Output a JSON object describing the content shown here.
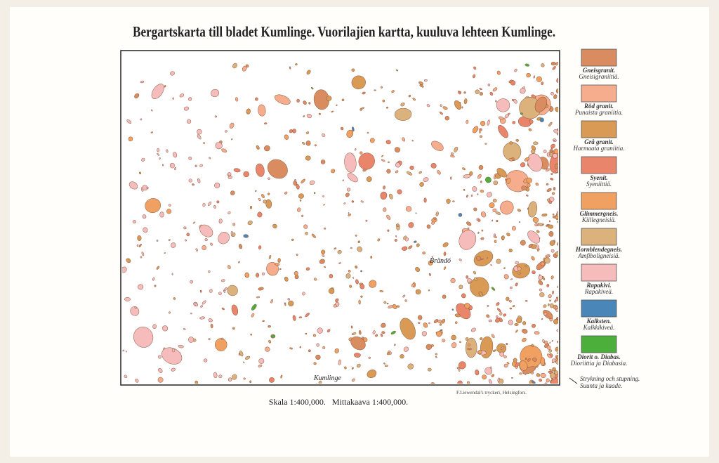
{
  "header": {
    "title": "Bergartskarta till bladet Kumlinge. Vuorilajien kartta, kuuluva lehteen Kumlinge."
  },
  "map": {
    "places": [
      "Brändö",
      "Kumlinge"
    ],
    "printer": "F.Liewendal's tryckeri, Helsingfors.",
    "scale": "Skala 1:400,000.   Mittakaava 1:400,000."
  },
  "legend": [
    {
      "sv": "Gneisgranit.",
      "fi": "Gneisigraniitiä.",
      "color": "#d98c5f"
    },
    {
      "sv": "Röd granit.",
      "fi": "Punaista graniitia.",
      "color": "#f5ad8e"
    },
    {
      "sv": "Grå granit.",
      "fi": "Harmaata graniitia.",
      "color": "#d99a55"
    },
    {
      "sv": "Syenit.",
      "fi": "Syeniittiä.",
      "color": "#e8856a"
    },
    {
      "sv": "Glimmergneis.",
      "fi": "Kiillegneisiä.",
      "color": "#f0a060"
    },
    {
      "sv": "Hornblendegneis.",
      "fi": "Amfiboligneisiä.",
      "color": "#dcb27c"
    },
    {
      "sv": "Rapakivi.",
      "fi": "Rapakiveä.",
      "color": "#f6bcbc"
    },
    {
      "sv": "Kalksten.",
      "fi": "Kalkkikiveä.",
      "color": "#4a86b8"
    },
    {
      "sv": "Diorit o. Diabas.",
      "fi": "Dioriittia ja Diabasia.",
      "color": "#4caf3c"
    }
  ],
  "symbol": {
    "sv": "Strykning och stupning.",
    "fi": "Suunta ja kaade."
  }
}
